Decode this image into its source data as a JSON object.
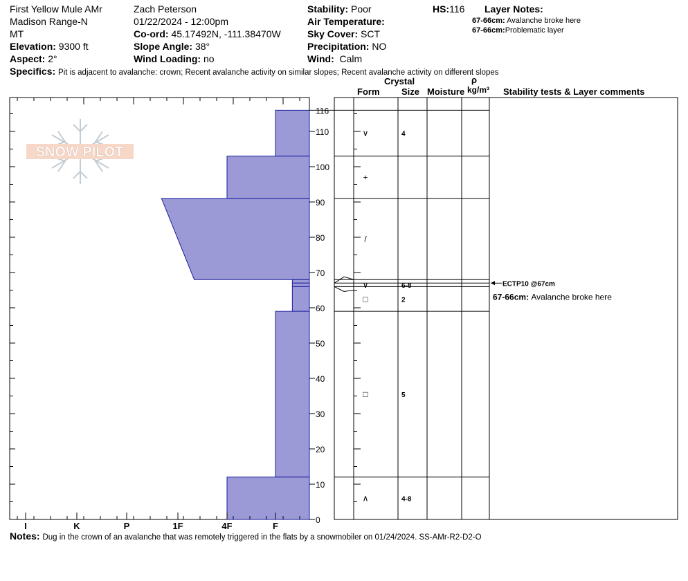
{
  "header": {
    "location": "First Yellow Mule AMr",
    "range": "Madison Range-N",
    "state": "MT",
    "elevation_label": "Elevation:",
    "elevation": "9300 ft",
    "aspect_label": "Aspect:",
    "aspect": "2°",
    "observer": "Zach Peterson",
    "datetime": "01/22/2024 - 12:00pm",
    "coord_label": "Co-ord:",
    "coord": "45.17492N, -111.38470W",
    "slope_label": "Slope Angle:",
    "slope": "38°",
    "wind_loading_label": "Wind Loading:",
    "wind_loading": "no",
    "stability_label": "Stability:",
    "stability": "Poor",
    "air_temp_label": "Air Temperature:",
    "sky_label": "Sky Cover:",
    "sky": "SCT",
    "precip_label": "Precipitation:",
    "precip": "NO",
    "wind_label": "Wind:",
    "wind": "Calm",
    "hs_label": "HS:",
    "hs": "116",
    "layer_notes_label": "Layer Notes:",
    "layer_notes": [
      {
        "range": "67-66cm:",
        "text": "Avalanche broke here"
      },
      {
        "range": "67-66cm:",
        "text": "Problematic layer"
      }
    ],
    "specifics_label": "Specifics:",
    "specifics": "Pit is adjacent to avalanche: crown; Recent avalanche activity on similar slopes; Recent avalanche activity on different slopes",
    "notes_label": "Notes:",
    "notes": "Dug in the crown of an avalanche that was remotely triggered in the flats by a snowmobiler on 01/24/2024. SS-AMr-R2-D2-O"
  },
  "logo": {
    "text": "SNOW PILOT"
  },
  "columns": {
    "crystal": "Crystal",
    "form": "Form",
    "size": "Size",
    "moisture": "Moisture",
    "rho": "ρ",
    "density": "kg/m³",
    "comments": "Stability tests & Layer comments"
  },
  "chart_data": {
    "type": "area",
    "title": "",
    "xlabel": "",
    "ylabel": "",
    "hardness_scale": [
      "I",
      "K",
      "P",
      "1F",
      "4F",
      "F"
    ],
    "x_ticks": [
      "I",
      "K",
      "P",
      "1F",
      "4F",
      "F"
    ],
    "height_ticks": [
      0,
      10,
      20,
      30,
      40,
      50,
      60,
      70,
      80,
      90,
      100,
      110
    ],
    "hs_tick": "116",
    "ylim": [
      0,
      116
    ],
    "layers": [
      {
        "top": 116,
        "bottom": 103,
        "hardness_top": "F",
        "hardness_bottom": "F",
        "form": "∨",
        "size": "4"
      },
      {
        "top": 103,
        "bottom": 91,
        "hardness_top": "4F",
        "hardness_bottom": "4F",
        "form": "+",
        "size": ""
      },
      {
        "top": 91,
        "bottom": 68,
        "hardness_top": "1F-",
        "hardness_bottom": "1F+",
        "form": "/",
        "size": ""
      },
      {
        "top": 68,
        "bottom": 67,
        "hardness_top": "F+",
        "hardness_bottom": "F+",
        "form": "",
        "size": ""
      },
      {
        "top": 67,
        "bottom": 66,
        "hardness_top": "F+",
        "hardness_bottom": "F+",
        "form": "∨",
        "size": "6-8"
      },
      {
        "top": 66,
        "bottom": 59,
        "hardness_top": "F+",
        "hardness_bottom": "F+",
        "form": "□",
        "size": "2"
      },
      {
        "top": 59,
        "bottom": 12,
        "hardness_top": "F",
        "hardness_bottom": "F",
        "form": "□",
        "size": "5"
      },
      {
        "top": 12,
        "bottom": 0,
        "hardness_top": "4F",
        "hardness_bottom": "4F",
        "form": "∧",
        "size": "4-8"
      }
    ],
    "stability_test": {
      "label": "ECTP10 @67cm",
      "height": 67
    },
    "layer_comment": {
      "range": "67-66cm:",
      "text": "Avalanche broke here"
    }
  }
}
